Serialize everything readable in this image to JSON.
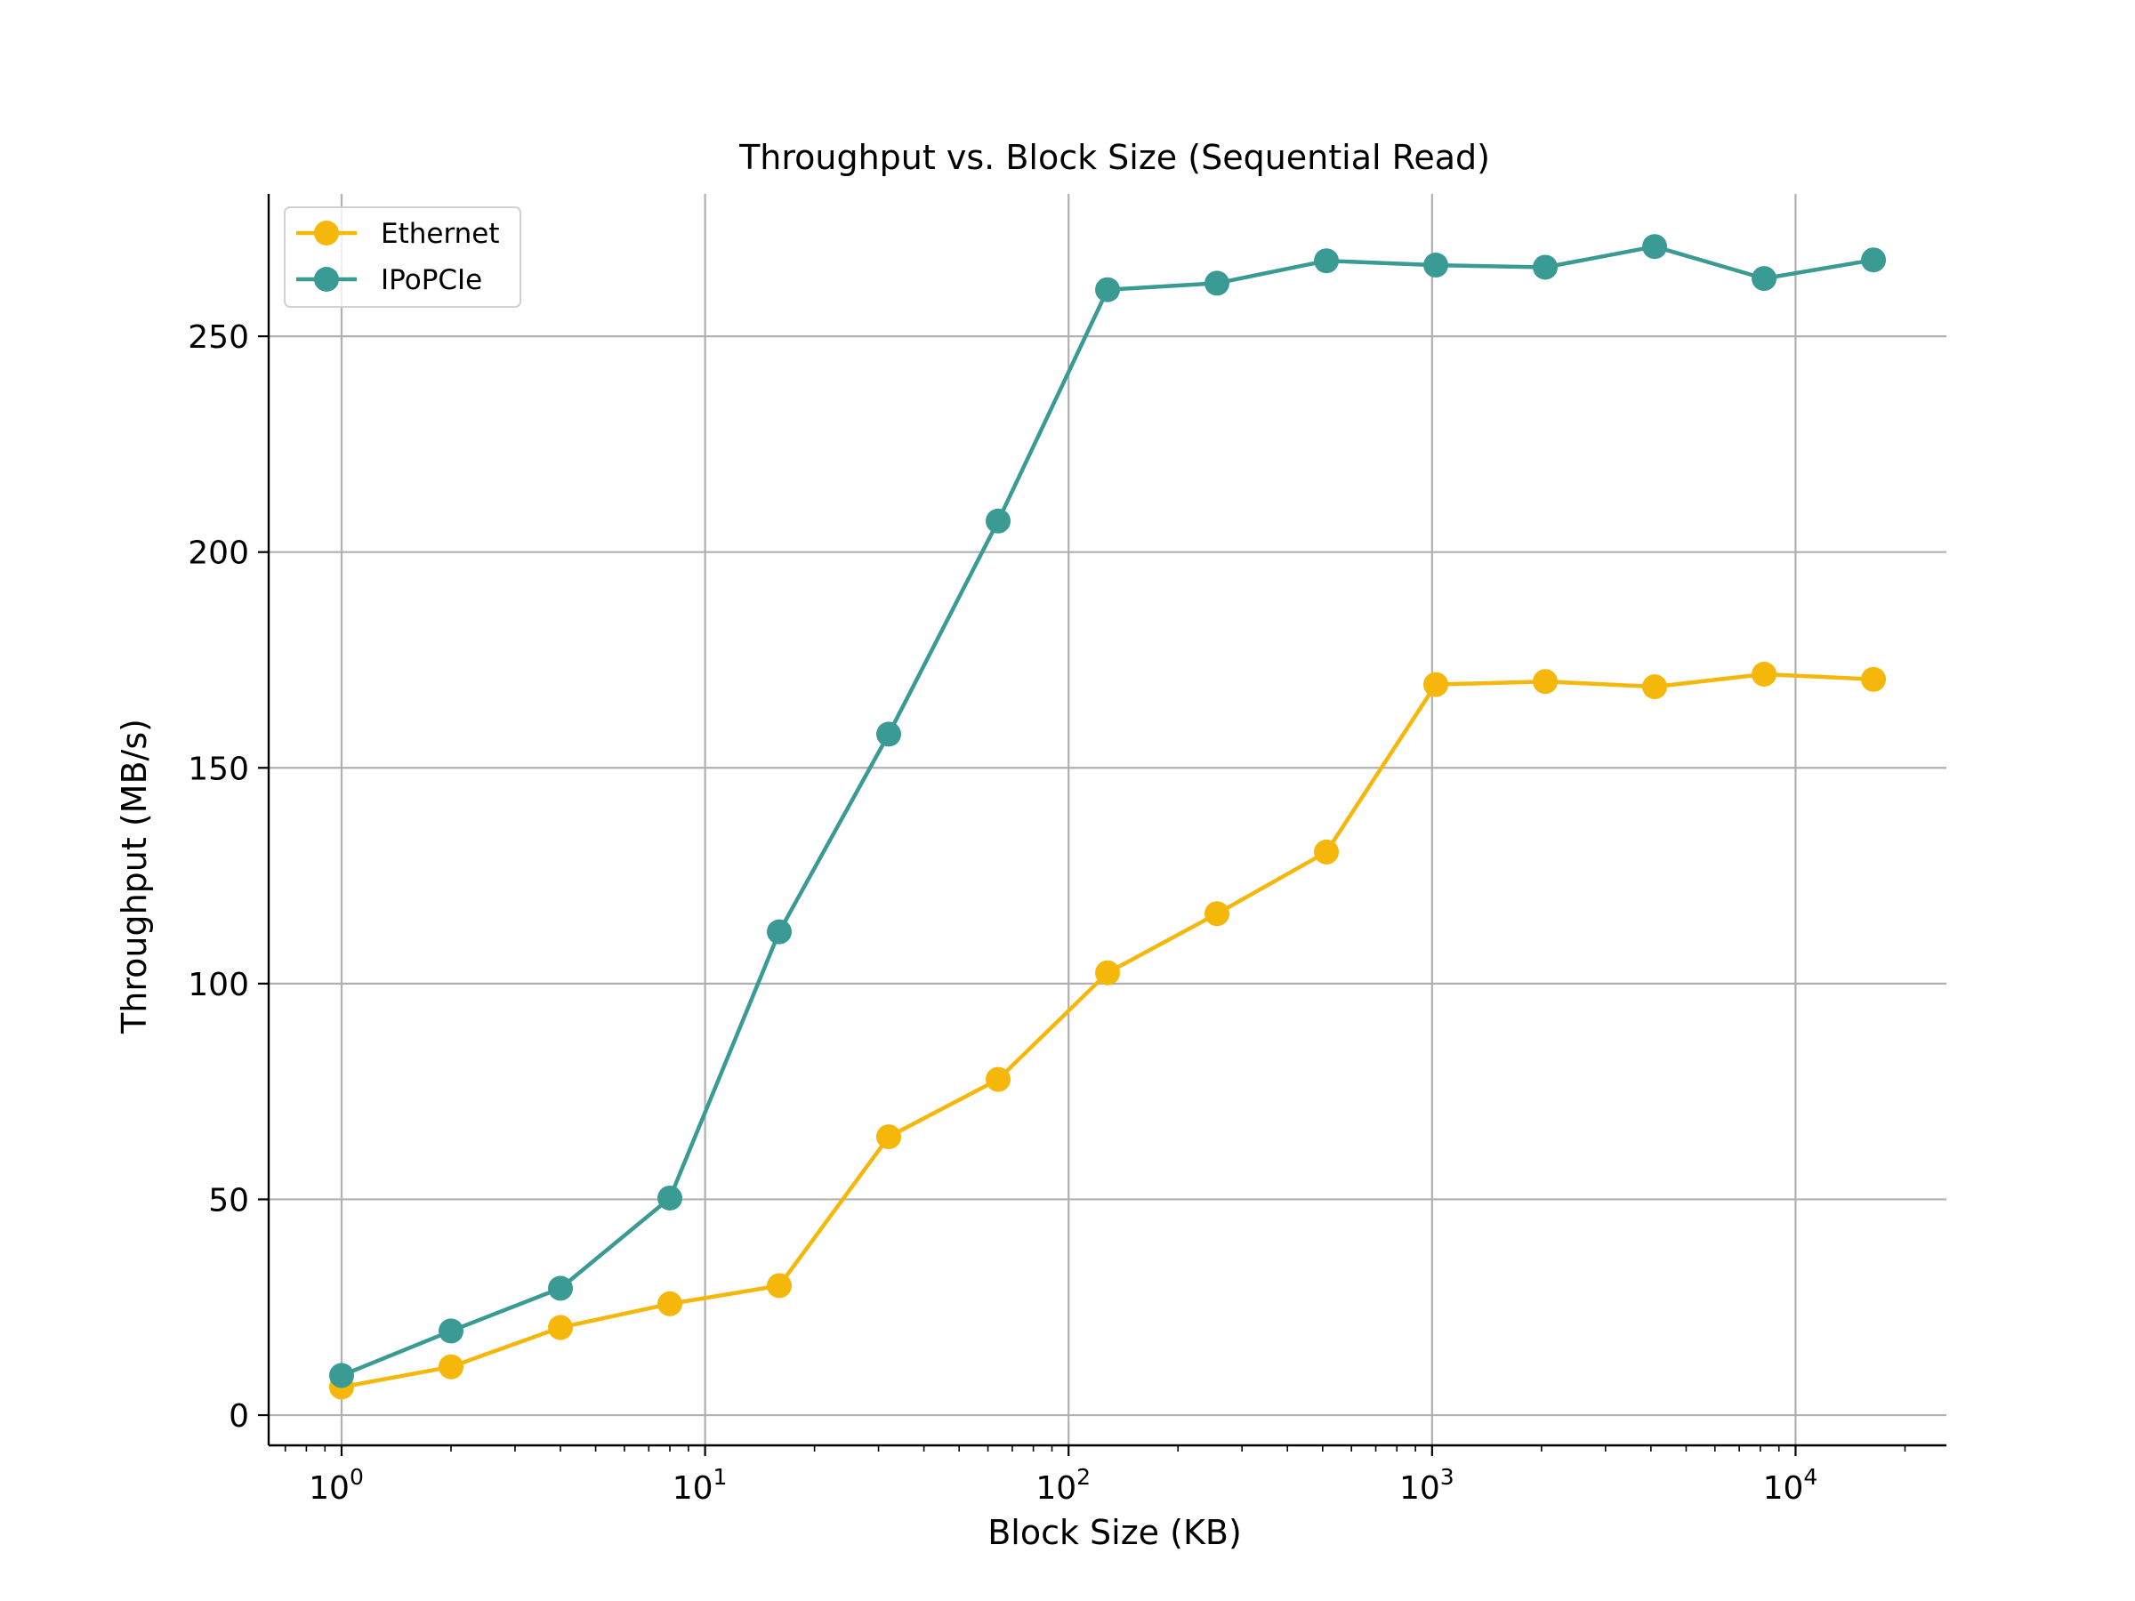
{
  "chart_data": {
    "type": "line",
    "title": "Throughput vs. Block Size (Sequential Read)",
    "xlabel": "Block Size (KB)",
    "ylabel": "Throughput (MB/s)",
    "xscale": "log",
    "xlim": [
      0.63,
      26000
    ],
    "ylim": [
      -7,
      283
    ],
    "x": [
      1,
      2,
      4,
      8,
      16,
      32,
      64,
      128,
      256,
      512,
      1024,
      2048,
      4096,
      8192,
      16384
    ],
    "series": [
      {
        "name": "Ethernet",
        "color": "#F5B70A",
        "values": [
          6.5,
          11.2,
          20.3,
          25.8,
          30.0,
          64.5,
          77.8,
          102.5,
          116.2,
          130.5,
          169.3,
          170.0,
          168.8,
          171.7,
          170.5
        ]
      },
      {
        "name": "IPoPCIe",
        "color": "#3A9A94",
        "values": [
          9.2,
          19.5,
          29.4,
          50.3,
          112.0,
          157.8,
          207.2,
          260.8,
          262.3,
          267.5,
          266.5,
          266.0,
          270.8,
          263.4,
          267.7
        ]
      }
    ],
    "x_ticks": [
      {
        "value": 1,
        "base": "10",
        "exp": "0"
      },
      {
        "value": 10,
        "base": "10",
        "exp": "1"
      },
      {
        "value": 100,
        "base": "10",
        "exp": "2"
      },
      {
        "value": 1000,
        "base": "10",
        "exp": "3"
      },
      {
        "value": 10000,
        "base": "10",
        "exp": "4"
      }
    ],
    "y_ticks": [
      0,
      50,
      100,
      150,
      200,
      250
    ],
    "grid": true,
    "legend_position": "top-left"
  }
}
